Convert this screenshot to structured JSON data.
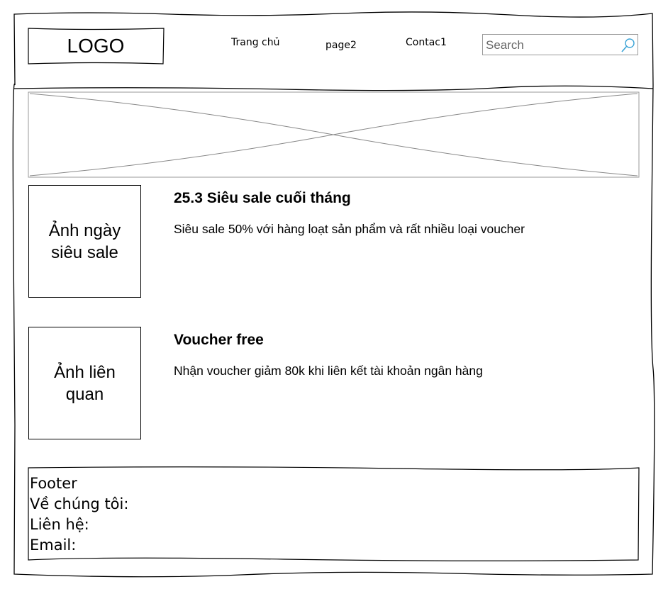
{
  "header": {
    "logo": "LOGO",
    "nav": [
      {
        "label": "Trang chủ"
      },
      {
        "label": "page2"
      },
      {
        "label": "Contac1"
      }
    ],
    "search": {
      "placeholder": "Search",
      "value": ""
    }
  },
  "posts": [
    {
      "image_label": "Ảnh ngày siêu sale",
      "title": "25.3 Siêu sale cuối tháng",
      "description": "Siêu sale 50% với hàng loạt sản phẩm và rất nhiều loại voucher"
    },
    {
      "image_label": "Ảnh liên quan",
      "title": "Voucher free",
      "description": "Nhận voucher giảm 80k khi liên kết tài khoản ngân hàng"
    }
  ],
  "footer": {
    "lines": [
      "Footer",
      "Về chúng tôi:",
      "Liên hệ:",
      "Email:"
    ]
  },
  "colors": {
    "line": "#000000",
    "placeholder_line": "#888888",
    "search_icon": "#3ba3d6"
  }
}
